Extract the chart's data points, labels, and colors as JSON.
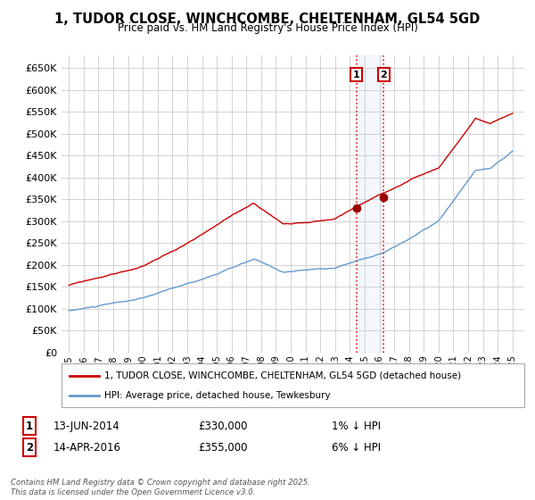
{
  "title": "1, TUDOR CLOSE, WINCHCOMBE, CHELTENHAM, GL54 5GD",
  "subtitle": "Price paid vs. HM Land Registry's House Price Index (HPI)",
  "bg_color": "#ffffff",
  "grid_color": "#cccccc",
  "house_color": "#cc0000",
  "hpi_color": "#6699cc",
  "transaction1": {
    "date_num": 2014.45,
    "price": 330000,
    "label": "1",
    "text": "13-JUN-2014",
    "amount": "£330,000",
    "note": "1% ↓ HPI"
  },
  "transaction2": {
    "date_num": 2016.29,
    "price": 355000,
    "label": "2",
    "text": "14-APR-2016",
    "amount": "£355,000",
    "note": "6% ↓ HPI"
  },
  "ylim": [
    0,
    680000
  ],
  "xlim_start": 1994.5,
  "xlim_end": 2025.8,
  "yticks": [
    0,
    50000,
    100000,
    150000,
    200000,
    250000,
    300000,
    350000,
    400000,
    450000,
    500000,
    550000,
    600000,
    650000
  ],
  "ytick_labels": [
    "£0",
    "£50K",
    "£100K",
    "£150K",
    "£200K",
    "£250K",
    "£300K",
    "£350K",
    "£400K",
    "£450K",
    "£500K",
    "£550K",
    "£600K",
    "£650K"
  ],
  "xticks": [
    1995,
    1996,
    1997,
    1998,
    1999,
    2000,
    2001,
    2002,
    2003,
    2004,
    2005,
    2006,
    2007,
    2008,
    2009,
    2010,
    2011,
    2012,
    2013,
    2014,
    2015,
    2016,
    2017,
    2018,
    2019,
    2020,
    2021,
    2022,
    2023,
    2024,
    2025
  ],
  "legend_house": "1, TUDOR CLOSE, WINCHCOMBE, CHELTENHAM, GL54 5GD (detached house)",
  "legend_hpi": "HPI: Average price, detached house, Tewkesbury",
  "footer": "Contains HM Land Registry data © Crown copyright and database right 2025.\nThis data is licensed under the Open Government Licence v3.0."
}
